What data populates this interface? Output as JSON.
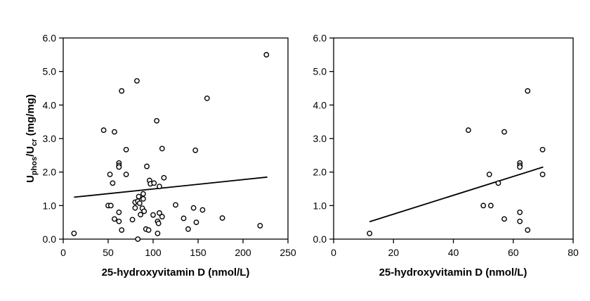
{
  "chart_data": [
    {
      "type": "scatter",
      "xlabel": "25-hydroxyvitamin D (nmol/L)",
      "ylabel": {
        "main": "U",
        "sub1": "phos",
        "mid": "/U",
        "sub2": "cr",
        "tail": " (mg/mg)"
      },
      "xlim": [
        0,
        250
      ],
      "ylim": [
        0,
        6
      ],
      "xticks": [
        0,
        50,
        100,
        150,
        200,
        250
      ],
      "yticks": [
        0.0,
        1.0,
        2.0,
        3.0,
        4.0,
        5.0,
        6.0
      ],
      "xtick_labels": [
        "0",
        "50",
        "100",
        "150",
        "200",
        "250"
      ],
      "ytick_labels": [
        "0.0",
        "1.0",
        "2.0",
        "3.0",
        "4.0",
        "5.0",
        "6.0"
      ],
      "grid": false,
      "points": [
        [
          12,
          0.17
        ],
        [
          45,
          3.25
        ],
        [
          50,
          1.0
        ],
        [
          52,
          1.93
        ],
        [
          53,
          1.0
        ],
        [
          55,
          1.67
        ],
        [
          57,
          3.2
        ],
        [
          57,
          0.6
        ],
        [
          62,
          2.27
        ],
        [
          62,
          2.2
        ],
        [
          62,
          2.15
        ],
        [
          62,
          0.8
        ],
        [
          62,
          0.53
        ],
        [
          65,
          4.42
        ],
        [
          65,
          0.27
        ],
        [
          70,
          2.67
        ],
        [
          70,
          1.93
        ],
        [
          77,
          0.58
        ],
        [
          80,
          1.1
        ],
        [
          80,
          0.93
        ],
        [
          82,
          4.72
        ],
        [
          83,
          1.13
        ],
        [
          83,
          0.0
        ],
        [
          84,
          1.27
        ],
        [
          85,
          1.07
        ],
        [
          86,
          0.73
        ],
        [
          88,
          0.92
        ],
        [
          89,
          1.2
        ],
        [
          89,
          1.35
        ],
        [
          90,
          0.83
        ],
        [
          92,
          0.3
        ],
        [
          93,
          2.17
        ],
        [
          95,
          0.27
        ],
        [
          96,
          1.75
        ],
        [
          97,
          1.65
        ],
        [
          100,
          0.72
        ],
        [
          101,
          1.67
        ],
        [
          104,
          3.53
        ],
        [
          105,
          0.17
        ],
        [
          105,
          0.53
        ],
        [
          106,
          0.47
        ],
        [
          107,
          1.57
        ],
        [
          107,
          0.78
        ],
        [
          110,
          2.7
        ],
        [
          110,
          0.67
        ],
        [
          112,
          1.83
        ],
        [
          125,
          1.02
        ],
        [
          134,
          0.62
        ],
        [
          139,
          0.3
        ],
        [
          145,
          0.93
        ],
        [
          147,
          2.65
        ],
        [
          148,
          0.5
        ],
        [
          155,
          0.87
        ],
        [
          160,
          4.2
        ],
        [
          177,
          0.63
        ],
        [
          219,
          0.4
        ],
        [
          226,
          5.5
        ]
      ],
      "trendline": [
        [
          12,
          1.25
        ],
        [
          227,
          1.85
        ]
      ]
    },
    {
      "type": "scatter",
      "xlabel": "25-hydroxyvitamin D (nmol/L)",
      "xlim": [
        0,
        80
      ],
      "ylim": [
        0,
        6
      ],
      "xticks": [
        0,
        20,
        40,
        60,
        80
      ],
      "yticks": [
        0.0,
        1.0,
        2.0,
        3.0,
        4.0,
        5.0,
        6.0
      ],
      "xtick_labels": [
        "0",
        "20",
        "40",
        "60",
        "80"
      ],
      "ytick_labels": [
        "0.0",
        "1.0",
        "2.0",
        "3.0",
        "4.0",
        "5.0",
        "6.0"
      ],
      "grid": false,
      "points": [
        [
          12,
          0.17
        ],
        [
          45,
          3.25
        ],
        [
          50,
          1.0
        ],
        [
          52,
          1.93
        ],
        [
          52.5,
          1.0
        ],
        [
          55,
          1.67
        ],
        [
          57,
          3.2
        ],
        [
          57,
          0.6
        ],
        [
          62.2,
          2.27
        ],
        [
          62.2,
          2.2
        ],
        [
          62.2,
          2.15
        ],
        [
          62.2,
          0.8
        ],
        [
          62.2,
          0.53
        ],
        [
          64.8,
          4.42
        ],
        [
          64.8,
          0.27
        ],
        [
          69.8,
          2.67
        ],
        [
          69.8,
          1.93
        ]
      ],
      "trendline": [
        [
          12,
          0.52
        ],
        [
          70,
          2.15
        ]
      ]
    }
  ]
}
